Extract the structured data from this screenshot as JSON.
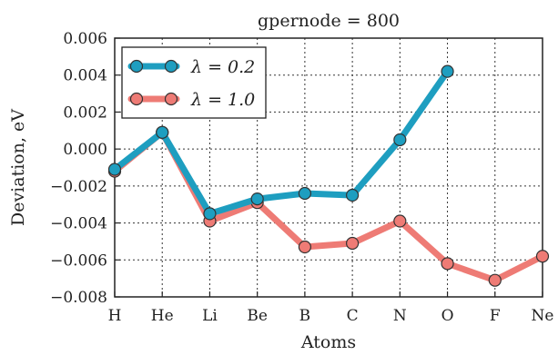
{
  "chart_data": {
    "type": "line",
    "title": "gpernode = 800",
    "xlabel": "Atoms",
    "ylabel": "Deviation, eV",
    "categories": [
      "H",
      "He",
      "Li",
      "Be",
      "B",
      "C",
      "N",
      "O",
      "F",
      "Ne"
    ],
    "ylim": [
      -0.008,
      0.006
    ],
    "yticks": [
      -0.008,
      -0.006,
      -0.004,
      -0.002,
      0.0,
      0.002,
      0.004,
      0.006
    ],
    "ytick_labels": [
      "−0.008",
      "−0.006",
      "−0.004",
      "−0.002",
      "0.000",
      "0.002",
      "0.004",
      "0.006"
    ],
    "grid": true,
    "legend_position": "top-left",
    "series": [
      {
        "name": "λ = 0.2",
        "color": "#1e9ec0",
        "values": [
          -0.0011,
          0.0009,
          -0.0035,
          -0.0027,
          -0.0024,
          -0.0025,
          0.0005,
          0.0042,
          null,
          null
        ]
      },
      {
        "name": "λ = 1.0",
        "color": "#ee7b75",
        "values": [
          -0.0012,
          0.0009,
          -0.0039,
          -0.0029,
          -0.0053,
          -0.0051,
          -0.0039,
          -0.0062,
          -0.0071,
          -0.0058
        ]
      }
    ]
  }
}
